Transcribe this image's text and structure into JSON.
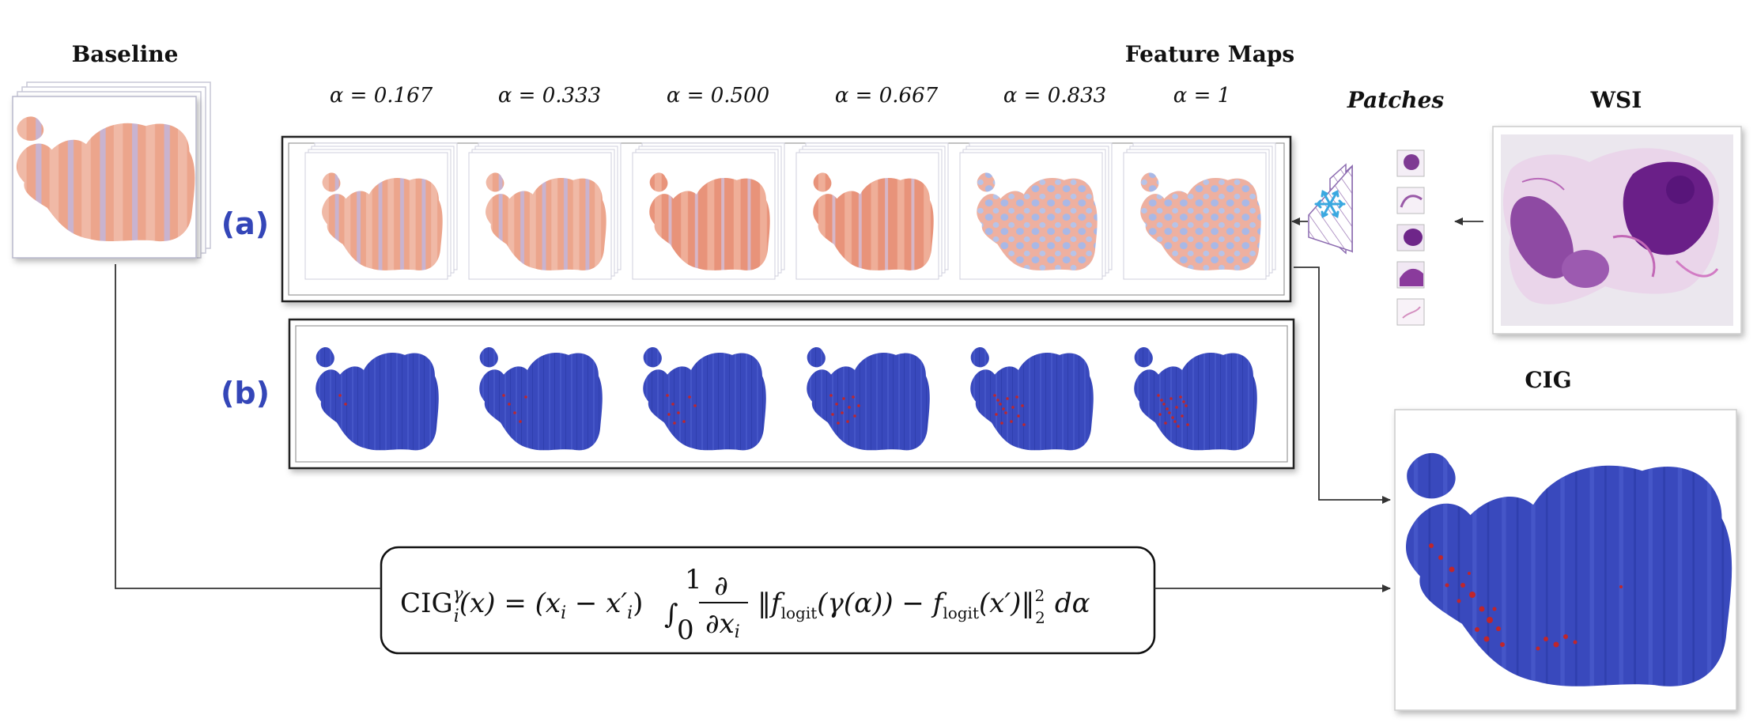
{
  "titles": {
    "baseline": "Baseline",
    "feature_maps": "Feature Maps",
    "patches": "Patches",
    "wsi": "WSI",
    "cig": "CIG"
  },
  "row_labels": {
    "a": "(a)",
    "b": "(b)"
  },
  "alphas": [
    "α = 0.167",
    "α = 0.333",
    "α = 0.500",
    "α = 0.667",
    "α = 0.833",
    "α = 1"
  ],
  "formula": {
    "lhs": "CIG",
    "lhs_sup": "γ",
    "lhs_sub": "i",
    "lhs_arg": "(x) = (x",
    "sub_i": "i",
    "minus": " − x′",
    "sub_i2": "i",
    "close": ")",
    "integral": "∫",
    "int_upper": "1",
    "int_lower": "0",
    "partial_num": "∂",
    "partial_den": "∂x",
    "partial_den_sub": "i",
    "norm_open": "‖f",
    "logit": "logit",
    "gamma_arg": "(γ(α)) − f",
    "logit2": "logit",
    "xprime": "(x′)",
    "norm_close": "‖",
    "pow": "2",
    "norm_sub": "2",
    "dalpha": "dα"
  },
  "colors": {
    "tissue_orange": "#e99a80",
    "tissue_blue": "#3a4cc0",
    "highlight_red": "#c0262b",
    "wsi_purple": "#7b2d8e",
    "label_blue": "#3446b8",
    "snowflake": "#3aa8e0"
  },
  "icons": {
    "frozen": "snowflake-icon"
  }
}
